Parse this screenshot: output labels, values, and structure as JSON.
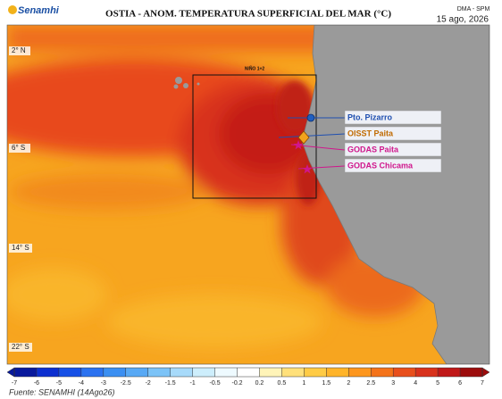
{
  "header": {
    "logo": "Senamhi",
    "title": "OSTIA - ANOM. TEMPERATURA SUPERFICIAL DEL MAR (°C)",
    "agency": "DMA - SPM",
    "date": "15 ago, 2026"
  },
  "map": {
    "latitude_labels": [
      "2° N",
      "6° S",
      "14° S",
      "22° S"
    ],
    "region_label": "NIÑO 1+2",
    "stations": [
      "Pto. Pizarro",
      "OISST Paita",
      "GODAS Paita",
      "GODAS Chicama"
    ]
  },
  "colorbar": {
    "ticks": [
      -7,
      -6,
      -5,
      -4,
      -3,
      -2.5,
      -2,
      -1.5,
      -1,
      -0.5,
      -0.2,
      0.2,
      0.5,
      1,
      1.5,
      2,
      2.5,
      3,
      4,
      5,
      6,
      7
    ],
    "colors": [
      "#08199c",
      "#0c2fd0",
      "#1650e6",
      "#2b72f0",
      "#3b8ff2",
      "#58a9f5",
      "#7cc3f7",
      "#a7dafa",
      "#cdeefc",
      "#eefaff",
      "#ffffff",
      "#fff4b8",
      "#ffe07a",
      "#ffcb45",
      "#ffb42a",
      "#fd961e",
      "#f4731a",
      "#e84f1c",
      "#d8321c",
      "#c01818",
      "#9c0c0c"
    ]
  },
  "footer": {
    "source": "Fuente: SENAMHI (14Ago26)"
  }
}
